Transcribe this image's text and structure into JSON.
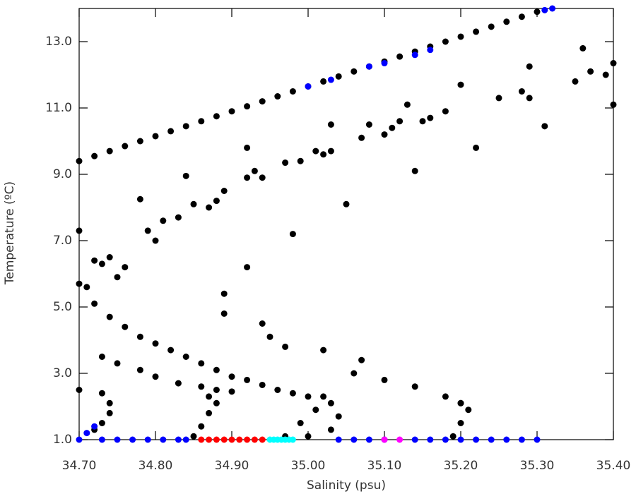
{
  "chart_data": {
    "type": "scatter",
    "x_label": "Salinity (psu)",
    "y_label": "Temperature (ºC)",
    "xlim": [
      34.7,
      35.4
    ],
    "ylim": [
      1.0,
      14.0
    ],
    "xticks": [
      {
        "value": 34.7,
        "label": "34.70"
      },
      {
        "value": 34.8,
        "label": "34.80"
      },
      {
        "value": 34.9,
        "label": "34.90"
      },
      {
        "value": 35.0,
        "label": "35.00"
      },
      {
        "value": 35.1,
        "label": "35.10"
      },
      {
        "value": 35.2,
        "label": "35.20"
      },
      {
        "value": 35.3,
        "label": "35.30"
      },
      {
        "value": 35.4,
        "label": "35.40"
      }
    ],
    "yticks": [
      {
        "value": 1,
        "label": "1.0"
      },
      {
        "value": 3,
        "label": "3.0"
      },
      {
        "value": 5,
        "label": "5.0"
      },
      {
        "value": 7,
        "label": "7.0"
      },
      {
        "value": 9,
        "label": "9.0"
      },
      {
        "value": 11,
        "label": "11.0"
      },
      {
        "value": 13,
        "label": "13.0"
      }
    ],
    "series": [
      {
        "color": "#000000",
        "x": [
          34.7,
          34.72,
          34.74,
          34.76,
          34.78,
          34.8,
          34.82,
          34.84,
          34.86,
          34.88,
          34.9,
          34.92,
          34.94,
          34.96,
          34.98,
          35.0,
          35.02,
          35.04,
          35.06,
          35.08,
          35.1,
          35.12,
          35.14,
          35.16,
          35.18,
          35.2,
          35.22,
          35.24,
          35.26,
          35.28,
          35.3,
          34.7,
          34.7,
          34.71,
          34.72,
          34.73,
          34.74,
          34.75,
          34.76,
          34.78,
          34.79,
          34.8,
          34.81,
          34.83,
          34.84,
          34.85,
          34.87,
          34.88,
          34.89,
          34.92,
          34.92,
          34.93,
          34.94,
          34.97,
          34.98,
          34.99,
          35.01,
          35.02,
          35.03,
          35.03,
          35.05,
          35.07,
          35.08,
          35.1,
          35.11,
          35.12,
          35.13,
          35.14,
          35.15,
          35.16,
          35.18,
          35.2,
          35.22,
          35.25,
          35.28,
          35.29,
          35.29,
          35.31,
          35.35,
          35.36,
          35.37,
          35.39,
          35.4,
          35.4,
          34.89,
          34.89,
          34.92,
          34.94,
          34.95,
          34.97,
          35.02,
          35.07,
          34.72,
          34.74,
          34.76,
          34.78,
          34.8,
          34.82,
          34.84,
          34.86,
          34.88,
          34.9,
          34.92,
          34.94,
          34.96,
          34.98,
          35.0,
          34.73,
          34.75,
          34.78,
          34.8,
          34.83,
          34.86,
          34.88,
          34.9,
          35.06,
          35.1,
          35.14,
          35.18,
          35.2,
          34.7,
          34.73,
          34.74,
          34.74,
          34.73,
          34.72,
          34.85,
          34.86,
          34.87,
          34.88,
          34.87,
          34.97,
          34.99,
          35.01,
          35.02,
          35.03,
          35.04,
          35.03,
          35.0,
          35.19,
          35.2,
          35.21,
          35.2
        ],
        "values": [
          9.4,
          9.55,
          9.7,
          9.85,
          10.0,
          10.15,
          10.3,
          10.45,
          10.6,
          10.75,
          10.9,
          11.05,
          11.2,
          11.35,
          11.5,
          11.65,
          11.8,
          11.95,
          12.1,
          12.25,
          12.4,
          12.55,
          12.7,
          12.85,
          13.0,
          13.15,
          13.3,
          13.45,
          13.6,
          13.75,
          13.9,
          7.3,
          5.7,
          5.6,
          6.4,
          6.3,
          6.5,
          5.9,
          6.2,
          8.25,
          7.3,
          7.0,
          7.6,
          7.7,
          8.95,
          8.1,
          8.0,
          8.2,
          8.5,
          8.9,
          9.8,
          9.1,
          8.9,
          9.35,
          7.2,
          9.4,
          9.7,
          9.6,
          9.7,
          10.5,
          8.1,
          10.1,
          10.5,
          10.2,
          10.4,
          10.6,
          11.1,
          9.1,
          10.6,
          10.7,
          10.9,
          11.7,
          9.8,
          11.3,
          11.5,
          12.25,
          11.3,
          10.45,
          11.8,
          12.8,
          12.1,
          12.0,
          12.35,
          11.1,
          5.4,
          4.8,
          6.2,
          4.5,
          4.1,
          3.8,
          3.7,
          3.4,
          5.1,
          4.7,
          4.4,
          4.1,
          3.9,
          3.7,
          3.5,
          3.3,
          3.1,
          2.9,
          2.8,
          2.65,
          2.5,
          2.4,
          2.3,
          3.5,
          3.3,
          3.1,
          2.9,
          2.7,
          2.6,
          2.5,
          2.45,
          3.0,
          2.8,
          2.6,
          2.3,
          2.1,
          2.5,
          2.4,
          2.1,
          1.8,
          1.5,
          1.3,
          1.1,
          1.4,
          1.8,
          2.1,
          2.3,
          1.1,
          1.5,
          1.9,
          2.3,
          2.1,
          1.7,
          1.3,
          1.1,
          1.1,
          1.5,
          1.9,
          2.1
        ]
      },
      {
        "color": "#0000ff",
        "x": [
          34.7,
          34.71,
          34.72,
          34.73,
          34.75,
          34.77,
          34.79,
          34.81,
          34.83,
          34.84,
          35.04,
          35.06,
          35.08,
          35.1,
          35.14,
          35.16,
          35.18,
          35.2,
          35.22,
          35.24,
          35.26,
          35.28,
          35.3,
          35.0,
          35.03,
          35.08,
          35.1,
          35.14,
          35.16,
          35.31,
          35.32
        ],
        "values": [
          1.0,
          1.2,
          1.4,
          1.0,
          1.0,
          1.0,
          1.0,
          1.0,
          1.0,
          1.0,
          1.0,
          1.0,
          1.0,
          1.0,
          1.0,
          1.0,
          1.0,
          1.0,
          1.0,
          1.0,
          1.0,
          1.0,
          1.0,
          11.65,
          11.85,
          12.25,
          12.35,
          12.6,
          12.75,
          13.95,
          14.0
        ]
      },
      {
        "color": "#ff0000",
        "x": [
          34.86,
          34.87,
          34.88,
          34.89,
          34.9,
          34.91,
          34.92,
          34.93,
          34.94
        ],
        "values": [
          1.0,
          1.0,
          1.0,
          1.0,
          1.0,
          1.0,
          1.0,
          1.0,
          1.0
        ]
      },
      {
        "color": "#00ffff",
        "x": [
          34.95,
          34.955,
          34.96,
          34.965,
          34.97,
          34.975,
          34.98
        ],
        "values": [
          1.0,
          1.0,
          1.0,
          1.0,
          1.0,
          1.0,
          1.0
        ]
      },
      {
        "color": "#ff00ff",
        "x": [
          35.1,
          35.12
        ],
        "values": [
          1.0,
          1.0
        ]
      }
    ]
  }
}
